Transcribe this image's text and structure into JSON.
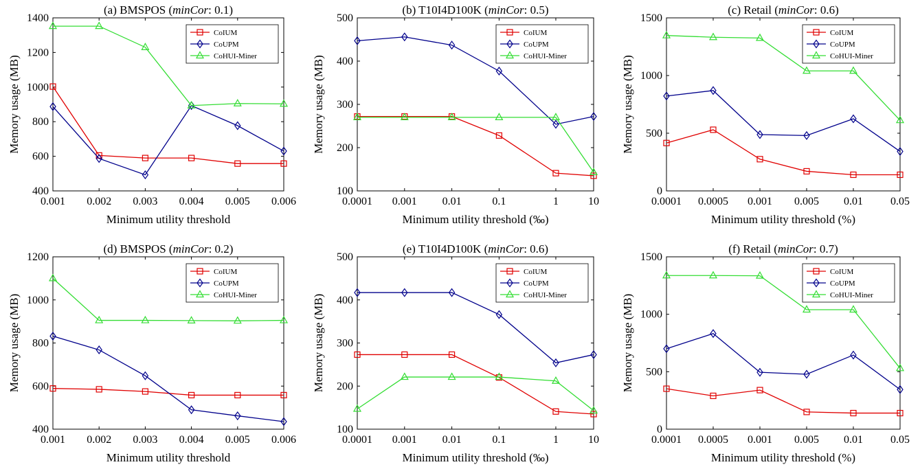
{
  "series_style": {
    "CoIUM": {
      "color": "#e00000",
      "marker": "square"
    },
    "CoUPM": {
      "color": "#00008b",
      "marker": "diamond"
    },
    "CoHUI-Miner": {
      "color": "#33dd33",
      "marker": "triangle"
    }
  },
  "chart_data": [
    {
      "type": "line",
      "title": "(a) BMSPOS (minCor: 0.1)",
      "title_parts": {
        "pre": "(a) BMSPOS (",
        "italic": "minCor",
        "post": ": 0.1)"
      },
      "xlabel": "Minimum utility threshold",
      "ylabel": "Memory usage (MB)",
      "categories": [
        "0.001",
        "0.002",
        "0.003",
        "0.004",
        "0.005",
        "0.006"
      ],
      "ylim": [
        400,
        1400
      ],
      "yticks": [
        400,
        600,
        800,
        1000,
        1200,
        1400
      ],
      "legend": "top-right",
      "grid": false,
      "series": [
        {
          "name": "CoIUM",
          "values": [
            1003,
            605,
            590,
            590,
            558,
            558
          ]
        },
        {
          "name": "CoUPM",
          "values": [
            887,
            587,
            493,
            893,
            777,
            630
          ]
        },
        {
          "name": "CoHUI-Miner",
          "values": [
            1352,
            1352,
            1230,
            893,
            905,
            903
          ]
        }
      ]
    },
    {
      "type": "line",
      "title": "(b) T10I4D100K (minCor: 0.5)",
      "title_parts": {
        "pre": "(b) T10I4D100K (",
        "italic": "minCor",
        "post": ": 0.5)"
      },
      "xlabel": "Minimum utility threshold (‰)",
      "ylabel": "Memory usage (MB)",
      "categories": [
        "0.0001",
        "0.001",
        "0.01",
        "0.1",
        "1",
        "10"
      ],
      "x_positions": [
        0,
        1,
        2,
        3,
        4.2,
        5
      ],
      "ylim": [
        100,
        500
      ],
      "yticks": [
        100,
        200,
        300,
        400,
        500
      ],
      "legend": "top-right",
      "grid": false,
      "series": [
        {
          "name": "CoIUM",
          "values": [
            272,
            272,
            272,
            228,
            141,
            135
          ]
        },
        {
          "name": "CoUPM",
          "values": [
            447,
            456,
            437,
            377,
            254,
            272
          ]
        },
        {
          "name": "CoHUI-Miner",
          "values": [
            270,
            270,
            270,
            270,
            270,
            143
          ]
        }
      ]
    },
    {
      "type": "line",
      "title": "(c) Retail (minCor: 0.6)",
      "title_parts": {
        "pre": "(c) Retail (",
        "italic": "minCor",
        "post": ": 0.6)"
      },
      "xlabel": "Minimum utility threshold (%)",
      "ylabel": "Memory usage (MB)",
      "categories": [
        "0.0001",
        "0.0005",
        "0.001",
        "0.005",
        "0.01",
        "0.05"
      ],
      "ylim": [
        0,
        1500
      ],
      "yticks": [
        0,
        500,
        1000,
        1500
      ],
      "legend": "top-right",
      "grid": false,
      "series": [
        {
          "name": "CoIUM",
          "values": [
            415,
            530,
            275,
            170,
            140,
            140
          ]
        },
        {
          "name": "CoUPM",
          "values": [
            822,
            870,
            488,
            480,
            625,
            342
          ]
        },
        {
          "name": "CoHUI-Miner",
          "values": [
            1347,
            1332,
            1325,
            1040,
            1040,
            612
          ]
        }
      ]
    },
    {
      "type": "line",
      "title": "(d) BMSPOS (minCor: 0.2)",
      "title_parts": {
        "pre": "(d) BMSPOS (",
        "italic": "minCor",
        "post": ": 0.2)"
      },
      "xlabel": "Minimum utility threshold",
      "ylabel": "Memory usage (MB)",
      "categories": [
        "0.001",
        "0.002",
        "0.003",
        "0.004",
        "0.005",
        "0.006"
      ],
      "ylim": [
        400,
        1200
      ],
      "yticks": [
        400,
        600,
        800,
        1000,
        1200
      ],
      "legend": "top-right",
      "grid": false,
      "series": [
        {
          "name": "CoIUM",
          "values": [
            589,
            585,
            575,
            558,
            558,
            558
          ]
        },
        {
          "name": "CoUPM",
          "values": [
            832,
            768,
            648,
            490,
            462,
            435
          ]
        },
        {
          "name": "CoHUI-Miner",
          "values": [
            1100,
            905,
            905,
            904,
            903,
            905
          ]
        }
      ]
    },
    {
      "type": "line",
      "title": "(e) T10I4D100K (minCor: 0.6)",
      "title_parts": {
        "pre": "(e) T10I4D100K (",
        "italic": "minCor",
        "post": ": 0.6)"
      },
      "xlabel": "Minimum utility threshold (‰)",
      "ylabel": "Memory usage (MB)",
      "categories": [
        "0.0001",
        "0.001",
        "0.01",
        "0.1",
        "1",
        "10"
      ],
      "x_positions": [
        0,
        1,
        2,
        3,
        4.2,
        5
      ],
      "ylim": [
        100,
        500
      ],
      "yticks": [
        100,
        200,
        300,
        400,
        500
      ],
      "legend": "top-right",
      "grid": false,
      "series": [
        {
          "name": "CoIUM",
          "values": [
            273,
            273,
            273,
            220,
            141,
            135
          ]
        },
        {
          "name": "CoUPM",
          "values": [
            417,
            417,
            417,
            366,
            254,
            273
          ]
        },
        {
          "name": "CoHUI-Miner",
          "values": [
            147,
            221,
            221,
            221,
            212,
            143
          ]
        }
      ]
    },
    {
      "type": "line",
      "title": "(f) Retail (minCor: 0.7)",
      "title_parts": {
        "pre": "(f) Retail (",
        "italic": "minCor",
        "post": ": 0.7)"
      },
      "xlabel": "Minimum utility threshold (%)",
      "ylabel": "Memory usage (MB)",
      "categories": [
        "0.0001",
        "0.0005",
        "0.001",
        "0.005",
        "0.01",
        "0.05"
      ],
      "ylim": [
        0,
        1500
      ],
      "yticks": [
        0,
        500,
        1000,
        1500
      ],
      "legend": "top-right",
      "grid": false,
      "series": [
        {
          "name": "CoIUM",
          "values": [
            352,
            290,
            340,
            150,
            140,
            140
          ]
        },
        {
          "name": "CoUPM",
          "values": [
            700,
            832,
            495,
            478,
            645,
            345
          ]
        },
        {
          "name": "CoHUI-Miner",
          "values": [
            1337,
            1337,
            1335,
            1040,
            1040,
            530
          ]
        }
      ]
    }
  ]
}
